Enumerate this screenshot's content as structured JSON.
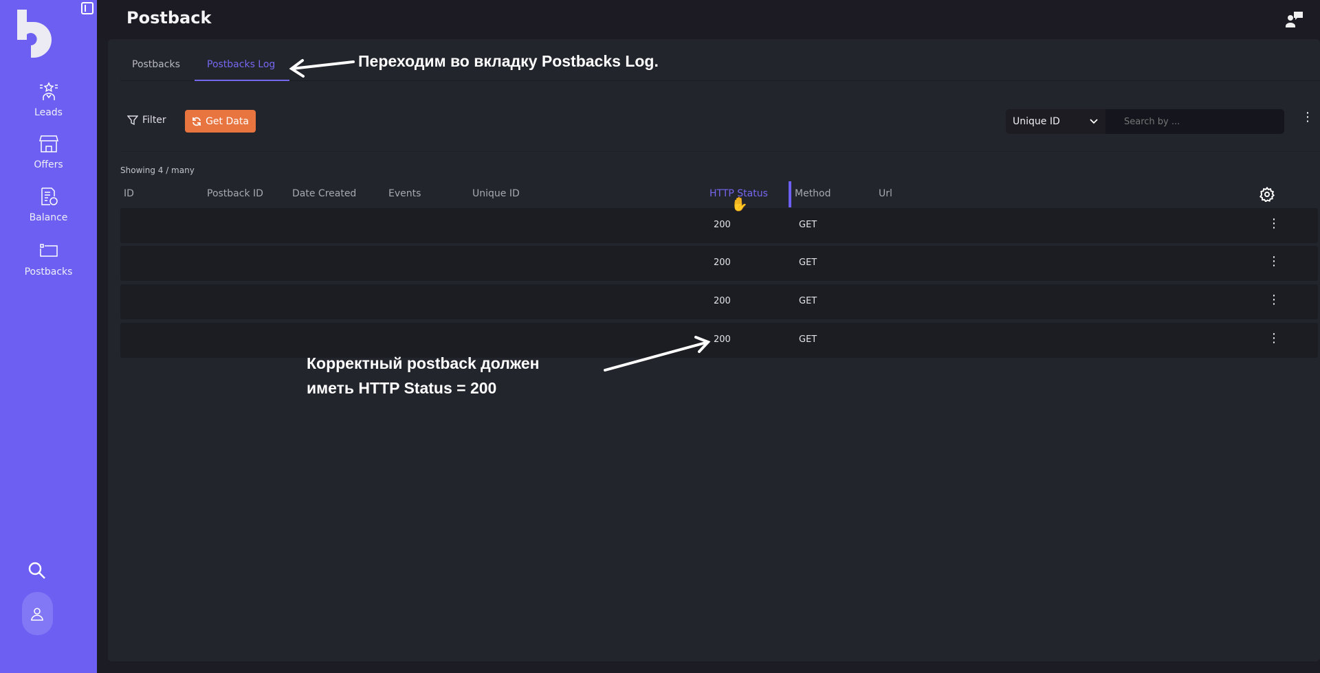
{
  "sidebar": {
    "items": [
      {
        "label": "Leads",
        "icon": "leads-star-icon"
      },
      {
        "label": "Offers",
        "icon": "store-icon"
      },
      {
        "label": "Balance",
        "icon": "invoice-icon"
      },
      {
        "label": "Postbacks",
        "icon": "postback-icon"
      }
    ]
  },
  "header": {
    "title": "Postback"
  },
  "tabs": [
    {
      "label": "Postbacks",
      "active": false
    },
    {
      "label": "Postbacks Log",
      "active": true
    }
  ],
  "toolbar": {
    "filter_label": "Filter",
    "get_data_label": "Get Data",
    "search_field": "Unique ID",
    "search_placeholder": "Search by ..."
  },
  "table": {
    "showing": "Showing 4 / many",
    "columns": [
      "ID",
      "Postback ID",
      "Date Created",
      "Events",
      "Unique ID",
      "HTTP Status",
      "Method",
      "Url"
    ],
    "rows": [
      {
        "status": "200",
        "method": "GET"
      },
      {
        "status": "200",
        "method": "GET"
      },
      {
        "status": "200",
        "method": "GET"
      },
      {
        "status": "200",
        "method": "GET"
      }
    ]
  },
  "annotations": {
    "tab_hint": "Переходим во вкладку Postbacks Log.",
    "status_hint_1": "Корректный postback должен",
    "status_hint_2": "иметь HTTP Status = 200"
  },
  "colors": {
    "accent": "#6c5ff2",
    "get_data": "#e8743f"
  }
}
